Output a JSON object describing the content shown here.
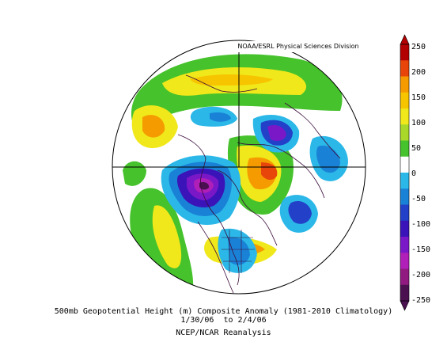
{
  "credit": "NOAA/ESRL Physical Sciences Division",
  "caption": {
    "line1": "500mb Geopotential Height (m) Composite Anomaly (1981-2010 Climatology)",
    "line2": "1/30/06  to 2/4/06",
    "line3": "NCEP/NCAR Reanalysis"
  },
  "colorbar": {
    "labels": [
      "250",
      "200",
      "150",
      "100",
      "50",
      "0",
      "-50",
      "-100",
      "-150",
      "-200",
      "-250"
    ],
    "colors": [
      "#b30000",
      "#e8450a",
      "#f59b00",
      "#f7c400",
      "#f0e81a",
      "#a9d82a",
      "#46c22c",
      "#ffffff",
      "#2bb8e8",
      "#1a82d6",
      "#2340c8",
      "#3a14b8",
      "#7a18c8",
      "#b020b8",
      "#901a80",
      "#4a1050"
    ]
  }
}
